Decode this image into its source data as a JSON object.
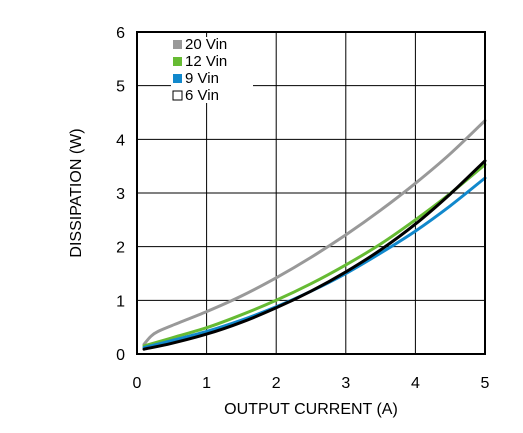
{
  "chart_data": {
    "type": "line",
    "xlabel": "OUTPUT CURRENT (A)",
    "ylabel": "DISSIPATION (W)",
    "xlim": [
      0,
      5
    ],
    "ylim": [
      0,
      6
    ],
    "xticks": [
      "0",
      "1",
      "2",
      "3",
      "4",
      "5"
    ],
    "yticks": [
      "0",
      "1",
      "2",
      "3",
      "4",
      "5",
      "6"
    ],
    "grid": true,
    "legend_position": "top-left",
    "series": [
      {
        "name": "20 Vin",
        "color": "#999999",
        "marker": "filled-square",
        "x": [
          0.1,
          0.2,
          0.3,
          0.5,
          1.0,
          1.5,
          2.0,
          2.5,
          3.0,
          3.5,
          4.0,
          4.5,
          5.0
        ],
        "y": [
          0.18,
          0.33,
          0.42,
          0.53,
          0.79,
          1.08,
          1.42,
          1.8,
          2.22,
          2.68,
          3.18,
          3.73,
          4.35
        ]
      },
      {
        "name": "12 Vin",
        "color": "#66bb33",
        "marker": "filled-square",
        "x": [
          0.1,
          0.5,
          1.0,
          1.5,
          2.0,
          2.5,
          3.0,
          3.5,
          4.0,
          4.5,
          5.0
        ],
        "y": [
          0.15,
          0.3,
          0.49,
          0.73,
          1.0,
          1.31,
          1.66,
          2.05,
          2.5,
          2.99,
          3.53
        ]
      },
      {
        "name": "9 Vin",
        "color": "#1188cc",
        "marker": "filled-square",
        "x": [
          0.1,
          0.5,
          1.0,
          1.5,
          2.0,
          2.5,
          3.0,
          3.5,
          4.0,
          4.5,
          5.0
        ],
        "y": [
          0.12,
          0.25,
          0.42,
          0.63,
          0.88,
          1.17,
          1.5,
          1.88,
          2.29,
          2.76,
          3.28
        ]
      },
      {
        "name": "6 Vin",
        "color": "#000000",
        "marker": "open-square",
        "x": [
          0.1,
          0.5,
          1.0,
          1.5,
          2.0,
          2.5,
          3.0,
          3.5,
          4.0,
          4.5,
          5.0
        ],
        "y": [
          0.09,
          0.2,
          0.37,
          0.59,
          0.86,
          1.17,
          1.53,
          1.94,
          2.42,
          2.98,
          3.6
        ]
      }
    ]
  }
}
